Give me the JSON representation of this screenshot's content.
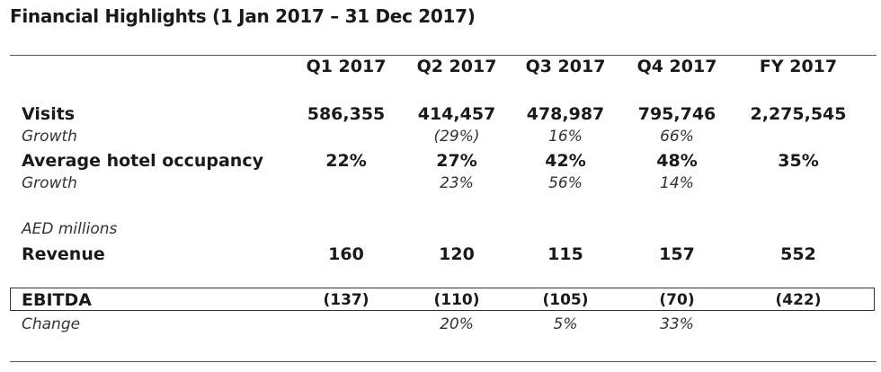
{
  "title": "Financial Highlights (1 Jan 2017 – 31 Dec 2017)",
  "columns": [
    "Q1 2017",
    "Q2 2017",
    "Q3 2017",
    "Q4 2017",
    "FY 2017"
  ],
  "rows": {
    "visits": {
      "label": "Visits",
      "values": [
        "586,355",
        "414,457",
        "478,987",
        "795,746",
        "2,275,545"
      ]
    },
    "visits_growth": {
      "label": "Growth",
      "values": [
        "",
        "(29%)",
        "16%",
        "66%",
        ""
      ]
    },
    "occupancy": {
      "label": "Average hotel occupancy",
      "values": [
        "22%",
        "27%",
        "42%",
        "48%",
        "35%"
      ]
    },
    "occupancy_growth": {
      "label": "Growth",
      "values": [
        "",
        "23%",
        "56%",
        "14%",
        ""
      ]
    },
    "units": {
      "label": "AED millions"
    },
    "revenue": {
      "label": "Revenue",
      "values": [
        "160",
        "120",
        "115",
        "157",
        "552"
      ]
    },
    "ebitda": {
      "label": "EBITDA",
      "values": [
        "(137)",
        "(110)",
        "(105)",
        "(70)",
        "(422)"
      ]
    },
    "ebitda_change": {
      "label": "Change",
      "values": [
        "",
        "20%",
        "5%",
        "33%",
        ""
      ]
    }
  }
}
